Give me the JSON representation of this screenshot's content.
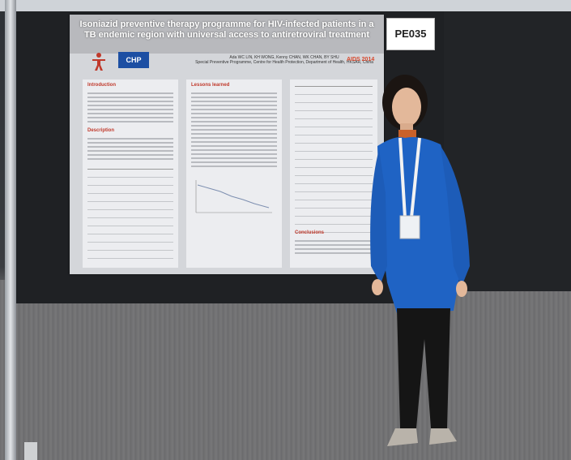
{
  "poster": {
    "title": "Isoniazid preventive therapy programme for HIV-infected patients in a TB endemic region with universal access to antiretroviral treatment",
    "authors": "Ada WC LIN, KH WONG, Kenny CHAN, WK CHAN, BY SHU",
    "affiliation": "Special Preventive Programme, Centre for Health Protection, Department of Health, HKSAR, China",
    "sections": {
      "introduction": "Introduction",
      "description": "Description",
      "lessons_learned": "Lessons learned",
      "conclusions": "Conclusions"
    },
    "aids_logo": "AIDS 2014",
    "chp_logo": "CHP"
  },
  "board_number": "PE035",
  "colors": {
    "section_heading": "#c0392b",
    "chp_blue": "#1d4fa3",
    "cardigan_blue": "#1f63c4"
  }
}
